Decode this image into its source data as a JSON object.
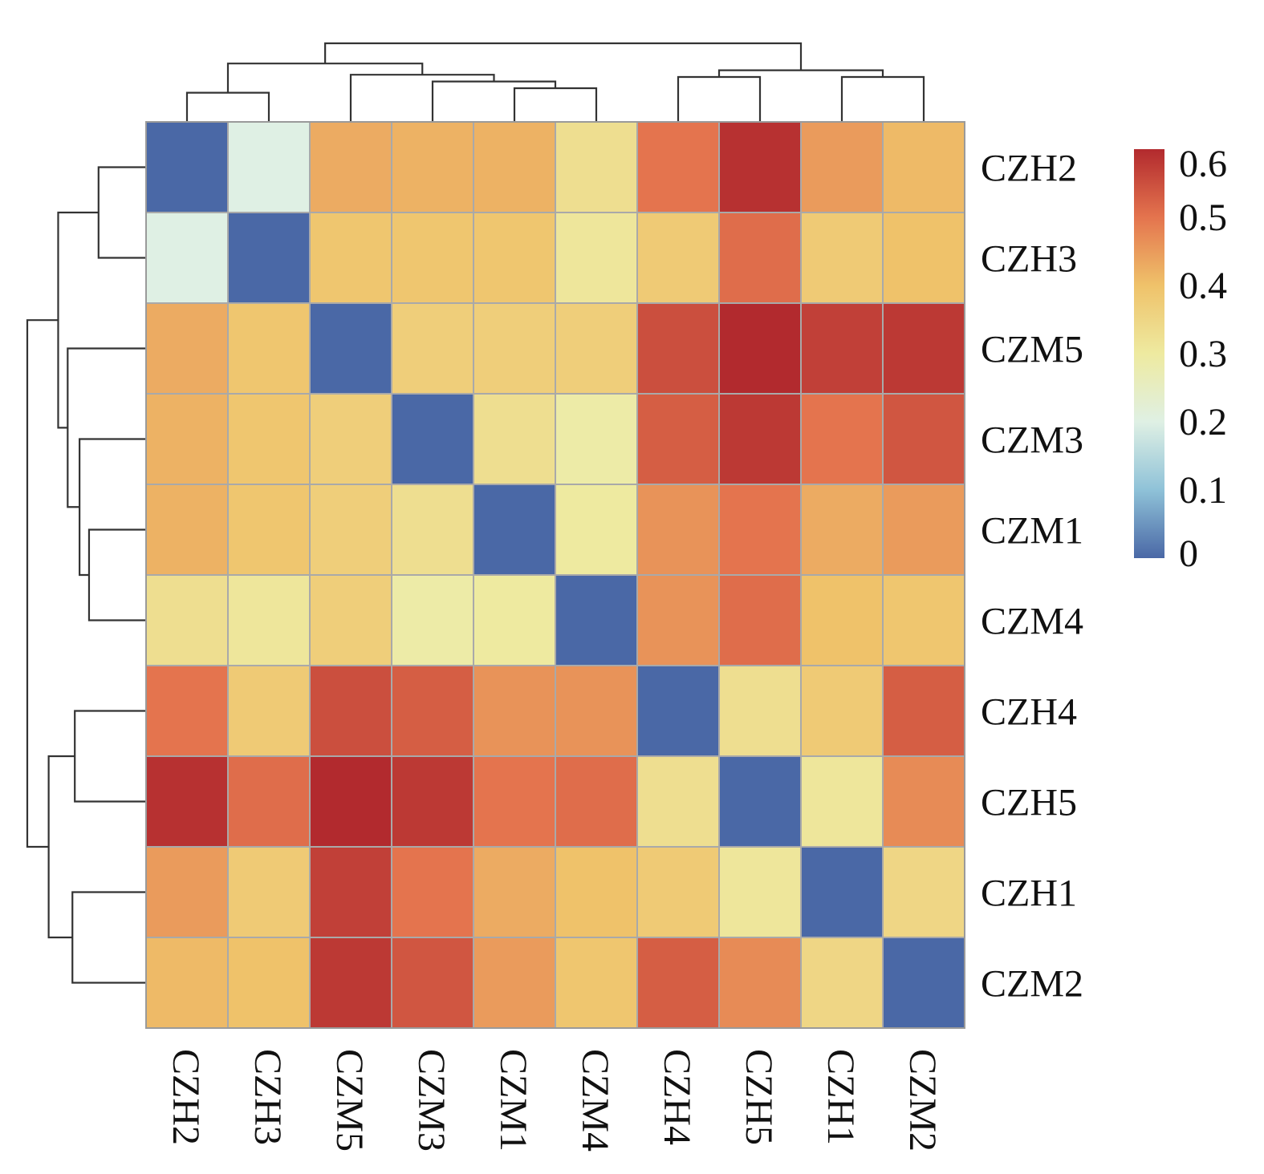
{
  "chart_data": {
    "type": "heatmap",
    "title": "",
    "xlabel": "",
    "ylabel": "",
    "row_labels": [
      "CZH2",
      "CZH3",
      "CZM5",
      "CZM3",
      "CZM1",
      "CZM4",
      "CZH4",
      "CZH5",
      "CZH1",
      "CZM2"
    ],
    "col_labels": [
      "CZH2",
      "CZH3",
      "CZM5",
      "CZM3",
      "CZM1",
      "CZM4",
      "CZH4",
      "CZH5",
      "CZH1",
      "CZM2"
    ],
    "values": [
      [
        0.0,
        0.2,
        0.43,
        0.42,
        0.42,
        0.33,
        0.5,
        0.59,
        0.45,
        0.41
      ],
      [
        0.2,
        0.0,
        0.39,
        0.39,
        0.39,
        0.31,
        0.38,
        0.51,
        0.38,
        0.4
      ],
      [
        0.43,
        0.39,
        0.0,
        0.37,
        0.37,
        0.37,
        0.55,
        0.61,
        0.57,
        0.58
      ],
      [
        0.42,
        0.39,
        0.37,
        0.0,
        0.33,
        0.29,
        0.53,
        0.58,
        0.5,
        0.54
      ],
      [
        0.42,
        0.39,
        0.37,
        0.33,
        0.0,
        0.3,
        0.46,
        0.5,
        0.43,
        0.45
      ],
      [
        0.33,
        0.31,
        0.37,
        0.29,
        0.3,
        0.0,
        0.46,
        0.51,
        0.4,
        0.39
      ],
      [
        0.5,
        0.38,
        0.55,
        0.53,
        0.46,
        0.46,
        0.0,
        0.33,
        0.38,
        0.53
      ],
      [
        0.59,
        0.51,
        0.61,
        0.58,
        0.5,
        0.51,
        0.33,
        0.0,
        0.31,
        0.47
      ],
      [
        0.45,
        0.38,
        0.57,
        0.5,
        0.43,
        0.4,
        0.38,
        0.31,
        0.0,
        0.35
      ],
      [
        0.41,
        0.4,
        0.58,
        0.54,
        0.45,
        0.39,
        0.53,
        0.47,
        0.35,
        0.0
      ]
    ],
    "colorbar": {
      "min": 0,
      "max": 0.6,
      "ticks": [
        "0",
        "0.1",
        "0.2",
        "0.3",
        "0.4",
        "0.5",
        "0.6"
      ],
      "colors": [
        "#4a68a6",
        "#8fc2d8",
        "#dff0e4",
        "#eeeaa0",
        "#efc26a",
        "#e4744e",
        "#b22a2e"
      ]
    },
    "dendrogram_top": {
      "leaves": [
        "CZH2",
        "CZH3",
        "CZM5",
        "CZM3",
        "CZM1",
        "CZM4",
        "CZH4",
        "CZH5",
        "CZH1",
        "CZM2"
      ],
      "merges": [
        [
          0,
          1,
          0.26
        ],
        [
          4,
          5,
          0.3
        ],
        [
          3,
          11,
          0.36
        ],
        [
          2,
          12,
          0.42
        ],
        [
          10,
          13,
          0.52
        ],
        [
          6,
          7,
          0.4
        ],
        [
          8,
          9,
          0.4
        ],
        [
          15,
          16,
          0.46
        ],
        [
          14,
          17,
          0.7
        ]
      ]
    },
    "dendrogram_left": {
      "leaves": [
        "CZH2",
        "CZH3",
        "CZM5",
        "CZM3",
        "CZM1",
        "CZM4",
        "CZH4",
        "CZH5",
        "CZH1",
        "CZM2"
      ],
      "merges": [
        [
          0,
          1,
          0.4
        ],
        [
          4,
          5,
          0.48
        ],
        [
          3,
          11,
          0.56
        ],
        [
          2,
          12,
          0.66
        ],
        [
          10,
          13,
          0.74
        ],
        [
          6,
          7,
          0.6
        ],
        [
          8,
          9,
          0.62
        ],
        [
          15,
          16,
          0.82
        ],
        [
          14,
          17,
          1.0
        ]
      ]
    },
    "legend": "top-right",
    "grid": true
  }
}
